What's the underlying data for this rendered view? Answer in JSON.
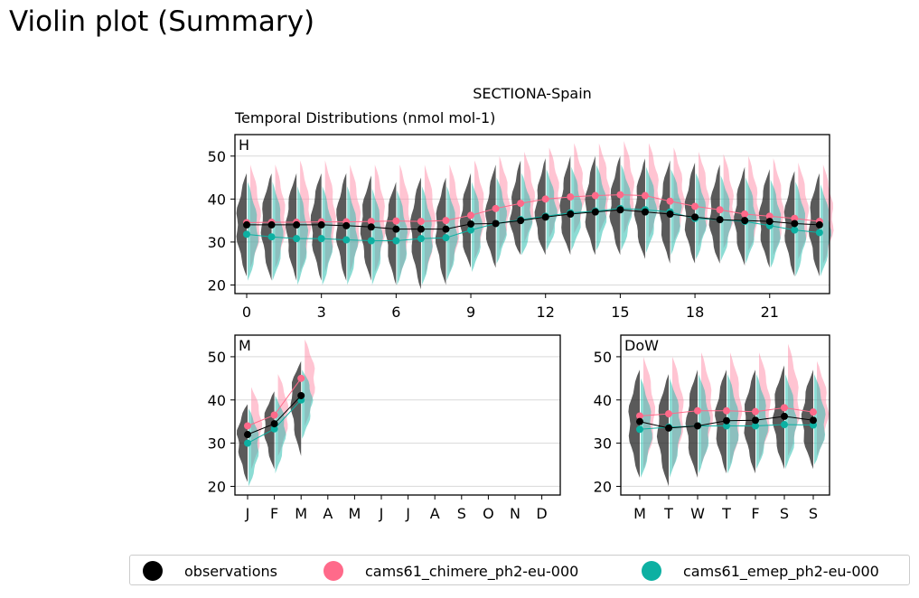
{
  "page_title": "Violin plot (Summary)",
  "figure": {
    "suptitle": "SECTIONA-Spain",
    "subtitle": "Temporal Distributions (nmol mol-1)"
  },
  "colors": {
    "observations": "#000000",
    "cams61_chimere_ph2-eu-000": "#ff6a8a",
    "cams61_emep_ph2-eu-000": "#0db0a2"
  },
  "legend": [
    {
      "label": "observations",
      "color": "#000000"
    },
    {
      "label": "cams61_chimere_ph2-eu-000",
      "color": "#ff6a8a"
    },
    {
      "label": "cams61_emep_ph2-eu-000",
      "color": "#0db0a2"
    }
  ],
  "chart_data": [
    {
      "type": "violin",
      "panel": "H",
      "categories": [
        0,
        1,
        2,
        3,
        4,
        5,
        6,
        7,
        8,
        9,
        10,
        11,
        12,
        13,
        14,
        15,
        16,
        17,
        18,
        19,
        20,
        21,
        22,
        23
      ],
      "x_tick_labels": [
        "0",
        "3",
        "6",
        "9",
        "12",
        "15",
        "18",
        "21"
      ],
      "ylim": [
        18,
        55
      ],
      "y_ticks": [
        20,
        30,
        40,
        50
      ],
      "grid": true,
      "series": [
        {
          "name": "observations",
          "medians": [
            34,
            34,
            34,
            34,
            33.8,
            33.5,
            33,
            33,
            33,
            34.2,
            34.3,
            35,
            35.8,
            36.5,
            37,
            37.5,
            37,
            36.5,
            35.8,
            35.2,
            35,
            34.8,
            34.3,
            34
          ],
          "upper": [
            46,
            46,
            46,
            46,
            46,
            45.5,
            44,
            45,
            45,
            46,
            48,
            49,
            49.5,
            50,
            50,
            50,
            49.5,
            49,
            48.5,
            48,
            47.5,
            47,
            46.5,
            46
          ],
          "lower": [
            22,
            21,
            21,
            21,
            21,
            21,
            20,
            19,
            20,
            24,
            24,
            27,
            27,
            27,
            27,
            27,
            26,
            25,
            25,
            25,
            24.5,
            24,
            22,
            22
          ]
        },
        {
          "name": "cams61_chimere_ph2-eu-000",
          "medians": [
            34.5,
            34.6,
            34.6,
            34.7,
            34.7,
            34.8,
            34.9,
            34.8,
            35,
            36.2,
            37.8,
            39,
            40,
            40.5,
            40.8,
            41,
            40.8,
            39.5,
            38.3,
            37.5,
            36.5,
            36,
            35.5,
            34.8
          ],
          "upper": [
            48,
            48,
            49,
            49,
            48,
            48,
            48,
            48,
            48,
            49,
            50,
            51,
            52,
            53,
            53,
            53.5,
            53,
            52,
            51,
            50.5,
            50,
            49.5,
            48.5,
            48
          ],
          "lower": [
            24,
            24,
            23,
            23,
            23,
            23,
            22,
            22,
            23,
            26,
            28,
            30,
            31,
            32,
            32,
            32,
            31,
            30,
            29,
            28.5,
            28,
            27,
            26,
            25
          ]
        },
        {
          "name": "cams61_emep_ph2-eu-000",
          "medians": [
            31.8,
            31.2,
            30.8,
            30.8,
            30.5,
            30.3,
            30.3,
            30.8,
            31,
            32.8,
            34.3,
            35.2,
            36,
            36.8,
            37.2,
            37.8,
            37.5,
            37,
            35.5,
            35.2,
            34.8,
            33.8,
            32.8,
            32.2
          ],
          "upper": [
            44,
            44,
            43,
            43,
            43,
            42.5,
            42,
            43,
            43,
            44,
            45,
            46,
            47,
            47.5,
            48,
            48,
            47.5,
            47,
            46,
            45.5,
            45,
            44.5,
            44,
            43.5
          ],
          "lower": [
            21,
            21,
            20,
            20,
            20,
            20,
            20,
            20,
            21,
            23,
            25,
            27,
            28,
            28,
            28,
            28,
            27.5,
            27,
            26,
            25.5,
            25,
            24,
            22,
            22
          ]
        }
      ]
    },
    {
      "type": "violin",
      "panel": "M",
      "categories": [
        "J",
        "F",
        "M",
        "A",
        "M",
        "J",
        "J",
        "A",
        "S",
        "O",
        "N",
        "D"
      ],
      "ylim": [
        18,
        55
      ],
      "y_ticks": [
        20,
        30,
        40,
        50
      ],
      "grid": true,
      "series": [
        {
          "name": "observations",
          "medians": [
            32,
            34.5,
            41
          ],
          "upper": [
            39,
            42,
            49
          ],
          "lower": [
            21,
            24,
            27
          ]
        },
        {
          "name": "cams61_chimere_ph2-eu-000",
          "medians": [
            34,
            36.5,
            45
          ],
          "upper": [
            43,
            46,
            54
          ],
          "lower": [
            24,
            27,
            34
          ]
        },
        {
          "name": "cams61_emep_ph2-eu-000",
          "medians": [
            30,
            33.3,
            40
          ],
          "upper": [
            38,
            41,
            47
          ],
          "lower": [
            20,
            23,
            31
          ]
        }
      ]
    },
    {
      "type": "violin",
      "panel": "DoW",
      "categories": [
        "M",
        "T",
        "W",
        "T",
        "F",
        "S",
        "S"
      ],
      "ylim": [
        18,
        55
      ],
      "y_ticks": [
        20,
        30,
        40,
        50
      ],
      "grid": true,
      "series": [
        {
          "name": "observations",
          "medians": [
            35,
            33.5,
            34,
            35.2,
            35.3,
            36.2,
            35.3
          ],
          "upper": [
            47,
            46,
            47,
            47,
            47,
            48,
            47
          ],
          "lower": [
            22,
            20,
            22,
            23,
            23,
            24,
            24
          ]
        },
        {
          "name": "cams61_chimere_ph2-eu-000",
          "medians": [
            36.3,
            36.8,
            37.5,
            37.5,
            37.3,
            38.2,
            37.2
          ],
          "upper": [
            50,
            50,
            51,
            51,
            51,
            53,
            49
          ],
          "lower": [
            24,
            24,
            25,
            25,
            26,
            27,
            27
          ]
        },
        {
          "name": "cams61_emep_ph2-eu-000",
          "medians": [
            33.2,
            33.7,
            34,
            34,
            34,
            34.3,
            34.2
          ],
          "upper": [
            45,
            45,
            46,
            46,
            46,
            46,
            46
          ],
          "lower": [
            22,
            22,
            23,
            23,
            24,
            24,
            25
          ]
        }
      ]
    }
  ]
}
